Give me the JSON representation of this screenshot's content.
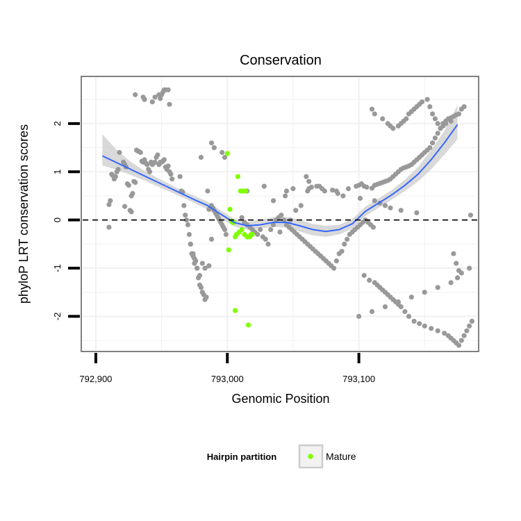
{
  "chart_data": {
    "type": "scatter",
    "title": "Conservation",
    "xlabel": "Genomic Position",
    "ylabel": "phyloP LRT conservation scores",
    "xlim": [
      792890,
      793190
    ],
    "ylim": [
      -2.7,
      2.95
    ],
    "x_ticks": [
      792900,
      793000,
      793100
    ],
    "x_tick_labels": [
      "792,900",
      "793,000",
      "793,100"
    ],
    "y_ticks": [
      -2,
      -1,
      0,
      1,
      2
    ],
    "y_tick_labels": [
      "-2",
      "-1",
      "0",
      "1",
      "2"
    ],
    "grid": true,
    "reference_line": {
      "y": 0,
      "style": "dashed"
    },
    "legend": {
      "title": "Hairpin partition",
      "placement": "bottom",
      "entries": [
        {
          "label": "Mature",
          "color": "#7fff00"
        }
      ]
    },
    "colors": {
      "other": "#999999",
      "mature": "#7fff00",
      "smooth": "#3366ff",
      "band": "#cccccc",
      "panel_border": "#7f7f7f"
    },
    "series": [
      {
        "kind": "points",
        "category": "other",
        "x": [
          792910,
          792911,
          792912,
          792913,
          792914,
          792915,
          792916,
          792917,
          792918,
          792910,
          792921,
          792922,
          792923,
          792924,
          792925,
          792926,
          792927,
          792928,
          792929,
          792930,
          792931,
          792932,
          792933,
          792934,
          792935,
          792936,
          792937,
          792938,
          792939,
          792940,
          792941,
          792942,
          792943,
          792944,
          792945,
          792946,
          792947,
          792948,
          792949,
          792950,
          792951,
          792952,
          792953,
          792954,
          792955,
          792956,
          792957,
          792958,
          792922,
          792927,
          792930,
          792936,
          792937,
          792943,
          792945,
          792948,
          792949,
          792950,
          792951,
          792952,
          792953,
          792955,
          792956,
          792964,
          792965,
          792966,
          792967,
          792968,
          792969,
          792970,
          792971,
          792972,
          792973,
          792974,
          792975,
          792976,
          792977,
          792978,
          792979,
          792980,
          792981,
          792982,
          792983,
          792984,
          792985,
          792986,
          792987,
          792988,
          792989,
          792990,
          792991,
          792992,
          792993,
          792994,
          792995,
          792996,
          792997,
          792998,
          792999,
          792980,
          792988,
          792990,
          792996,
          792998,
          792972,
          792974,
          792975,
          792977,
          792979,
          792981,
          792983,
          792986,
          792988,
          793011,
          793013,
          793015,
          793017,
          793019,
          793021,
          793023,
          793025,
          793027,
          793029,
          793031,
          793033,
          793035,
          793037,
          793039,
          793041,
          793043,
          793045,
          793047,
          793049,
          793051,
          793053,
          793055,
          793057,
          793059,
          793061,
          793063,
          793065,
          793067,
          793069,
          793071,
          793073,
          793075,
          793077,
          793079,
          793081,
          793083,
          793085,
          793087,
          793089,
          793091,
          793093,
          793095,
          793097,
          793099,
          793101,
          793103,
          793105,
          793107,
          793109,
          793111,
          793040,
          793045,
          793050,
          793061,
          793062,
          793064,
          793068,
          793072,
          793080,
          793083,
          793092,
          793098,
          793100,
          793102,
          793104,
          793106,
          793110,
          793112,
          793114,
          793116,
          793118,
          793120,
          793122,
          793124,
          793126,
          793128,
          793130,
          793132,
          793134,
          793136,
          793138,
          793140,
          793142,
          793144,
          793146,
          793148,
          793150,
          793152,
          793154,
          793156,
          793158,
          793160,
          793162,
          793164,
          793166,
          793168,
          793170,
          793172,
          793174,
          793176,
          793178,
          793180,
          793110,
          793112,
          793118,
          793122,
          793124,
          793126,
          793130,
          793132,
          793134,
          793136,
          793138,
          793140,
          793142,
          793144,
          793146,
          793148,
          793152,
          793154,
          793156,
          793158,
          793160,
          793162,
          793164,
          793166,
          793170,
          793172,
          793174,
          793176,
          793104,
          793108,
          793112,
          793114,
          793116,
          793118,
          793120,
          793122,
          793124,
          793126,
          793128,
          793130,
          793132,
          793135,
          793138,
          793142,
          793146,
          793150,
          793155,
          793160,
          793165,
          793168,
          793170,
          793172,
          793174,
          793176,
          793178,
          793180,
          793182,
          793184,
          793186,
          793100,
          793110,
          793120,
          793130,
          793140,
          793150,
          793160,
          793170,
          793175,
          793178,
          793184,
          793015,
          793028,
          793035,
          793044,
          793048,
          793052,
          793056,
          793060,
          793062,
          793070,
          793074,
          793084,
          793088,
          793101,
          793112,
          793116,
          793120,
          793124,
          793132,
          793144,
          793185
        ],
        "y": [
          -0.15,
          0.4,
          0.95,
          0.92,
          0.85,
          0.9,
          1.0,
          1.05,
          1.4,
          0.32,
          1.2,
          1.15,
          1.1,
          0.75,
          0.72,
          0.2,
          0.5,
          0.55,
          0.8,
          0.78,
          1.45,
          1.43,
          1.42,
          1.4,
          1.22,
          1.2,
          1.25,
          1.18,
          1.15,
          1.05,
          1.0,
          1.2,
          1.15,
          1.18,
          1.2,
          1.3,
          1.35,
          1.15,
          1.2,
          1.2,
          1.22,
          1.25,
          1.1,
          1.05,
          1.12,
          1.0,
          0.95,
          0.85,
          0.28,
          0.17,
          2.6,
          2.55,
          2.5,
          2.45,
          2.55,
          2.6,
          2.52,
          2.6,
          2.65,
          2.7,
          2.7,
          2.7,
          2.4,
          0.9,
          0.6,
          0.58,
          0.3,
          0.1,
          0.0,
          -0.1,
          -0.3,
          -0.5,
          -0.7,
          -0.75,
          -0.8,
          -0.85,
          -1.0,
          -1.2,
          -1.35,
          -1.4,
          -1.5,
          -1.55,
          -1.65,
          -1.6,
          0.6,
          0.22,
          0.25,
          0.3,
          0.25,
          0.2,
          0.15,
          0.1,
          0.05,
          0.0,
          -0.05,
          -0.1,
          -0.15,
          -0.2,
          -0.3,
          1.3,
          1.6,
          1.5,
          1.4,
          1.3,
          -0.5,
          -0.7,
          -0.9,
          -1.0,
          -1.15,
          -0.9,
          -1.0,
          -0.95,
          -0.4,
          0.05,
          -0.05,
          -0.1,
          -0.15,
          -0.2,
          -0.25,
          -0.3,
          -0.2,
          -0.35,
          -0.4,
          -0.5,
          -0.2,
          -0.1,
          0.0,
          0.05,
          0.1,
          0.0,
          -0.1,
          -0.15,
          -0.2,
          -0.25,
          -0.3,
          -0.35,
          -0.4,
          -0.45,
          -0.5,
          -0.55,
          -0.6,
          -0.65,
          -0.7,
          -0.75,
          -0.8,
          -0.85,
          -0.9,
          -0.95,
          -1.0,
          -0.85,
          -0.7,
          -0.65,
          -0.5,
          -0.4,
          -0.3,
          -0.25,
          -0.2,
          -0.15,
          -0.1,
          -0.05,
          0.0,
          -0.05,
          -0.1,
          -0.15,
          -0.25,
          0.6,
          0.65,
          0.6,
          0.65,
          0.68,
          0.7,
          0.65,
          0.62,
          0.6,
          0.65,
          0.7,
          0.72,
          0.75,
          0.7,
          0.68,
          0.66,
          0.72,
          0.74,
          0.76,
          0.78,
          0.8,
          0.82,
          0.85,
          0.9,
          0.95,
          1.0,
          1.05,
          1.08,
          1.1,
          1.12,
          1.15,
          1.2,
          1.25,
          1.3,
          1.35,
          1.4,
          1.45,
          1.5,
          1.6,
          1.7,
          1.8,
          1.9,
          2.0,
          2.05,
          2.1,
          2.12,
          2.15,
          2.18,
          2.2,
          2.3,
          2.35,
          2.3,
          2.2,
          2.1,
          2.0,
          1.95,
          1.9,
          1.95,
          2.0,
          2.05,
          2.1,
          2.2,
          2.25,
          2.3,
          2.35,
          2.4,
          2.45,
          2.5,
          2.35,
          2.2,
          2.1,
          2.0,
          1.9,
          1.95,
          2.0,
          2.05,
          -0.7,
          -0.9,
          -1.05,
          -1.15,
          -1.25,
          -1.3,
          -1.35,
          -1.4,
          -1.45,
          -1.5,
          -1.55,
          -1.6,
          -1.65,
          -1.7,
          -1.75,
          -1.8,
          -1.9,
          -2.0,
          -2.1,
          -2.15,
          -2.2,
          -2.25,
          -2.3,
          -2.35,
          -2.4,
          -2.45,
          -2.5,
          -2.55,
          -2.6,
          -2.5,
          -2.4,
          -2.3,
          -2.2,
          -2.1,
          -2.0,
          -1.9,
          -1.8,
          -1.7,
          -1.6,
          -1.5,
          -1.4,
          -1.3,
          -1.2,
          -1.1,
          -1.0,
          0.6,
          0.7,
          0.4,
          0.5,
          0.0,
          0.2,
          0.3,
          0.9,
          0.8,
          0.7,
          0.6,
          0.55,
          0.5,
          0.45,
          0.4,
          0.35,
          0.3,
          0.25,
          0.2,
          0.15,
          0.1
        ],
        "note": ""
      },
      {
        "kind": "points",
        "category": "mature",
        "name": "Mature",
        "x": [
          793000,
          793002,
          793004,
          793006,
          793008,
          793010,
          793012,
          793014,
          793016,
          793018,
          793001,
          793003,
          793005,
          793007,
          793009,
          793011,
          793013,
          793015,
          793017,
          793019,
          793006,
          793016
        ],
        "y": [
          1.38,
          0.22,
          -0.05,
          -0.35,
          0.9,
          0.6,
          0.6,
          0.6,
          -0.35,
          -0.3,
          -0.62,
          -0.02,
          -0.05,
          -0.3,
          -0.25,
          -0.2,
          -0.3,
          -0.35,
          -0.35,
          -0.3,
          -1.88,
          -2.18
        ]
      },
      {
        "kind": "smooth",
        "x": [
          792905,
          792915,
          792925,
          792935,
          792945,
          792955,
          792965,
          792975,
          792985,
          792995,
          793005,
          793015,
          793025,
          793035,
          793045,
          793055,
          793065,
          793075,
          793085,
          793095,
          793105,
          793115,
          793125,
          793135,
          793145,
          793155,
          793165,
          793175
        ],
        "y": [
          1.33,
          1.2,
          1.07,
          0.94,
          0.81,
          0.68,
          0.55,
          0.42,
          0.3,
          0.12,
          -0.05,
          -0.12,
          -0.1,
          -0.05,
          -0.05,
          -0.12,
          -0.2,
          -0.24,
          -0.2,
          -0.08,
          0.18,
          0.35,
          0.52,
          0.72,
          0.95,
          1.25,
          1.6,
          1.98
        ],
        "lower": [
          1.13,
          1.05,
          0.95,
          0.84,
          0.72,
          0.6,
          0.48,
          0.35,
          0.22,
          0.04,
          -0.13,
          -0.2,
          -0.18,
          -0.14,
          -0.16,
          -0.24,
          -0.32,
          -0.35,
          -0.3,
          -0.18,
          0.08,
          0.25,
          0.42,
          0.6,
          0.8,
          1.05,
          1.35,
          1.68
        ],
        "upper": [
          1.78,
          1.48,
          1.24,
          1.05,
          0.9,
          0.76,
          0.62,
          0.5,
          0.38,
          0.2,
          0.03,
          -0.04,
          0.0,
          0.06,
          0.06,
          0.0,
          -0.08,
          -0.12,
          -0.1,
          0.02,
          0.28,
          0.45,
          0.62,
          0.84,
          1.1,
          1.45,
          1.85,
          2.38
        ]
      }
    ]
  }
}
